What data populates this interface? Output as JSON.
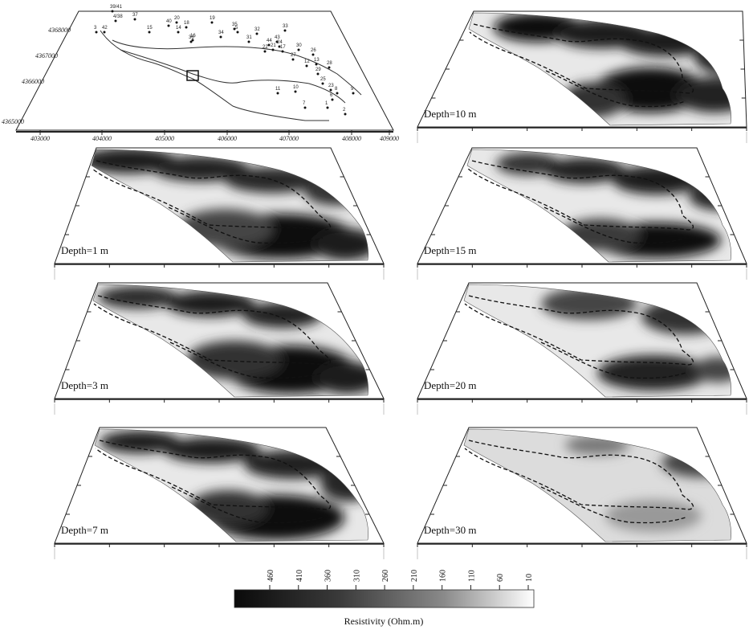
{
  "map": {
    "x_ticks": [
      "403000",
      "404000",
      "405000",
      "406000",
      "407000",
      "408000",
      "409000"
    ],
    "y_ticks": [
      "4368000",
      "4367000",
      "4366000",
      "4365000"
    ],
    "stations": [
      "39/41",
      "4/38",
      "37",
      "42",
      "15",
      "40",
      "18",
      "14",
      "16",
      "19",
      "20",
      "35",
      "34",
      "36",
      "31",
      "32",
      "5",
      "33",
      "43",
      "44",
      "17",
      "22",
      "21",
      "24",
      "3",
      "27",
      "26",
      "30",
      "12",
      "13",
      "28",
      "29",
      "25",
      "23",
      "6",
      "8",
      "9",
      "10",
      "11",
      "7",
      "1",
      "2"
    ]
  },
  "panels": [
    {
      "id": "d10",
      "label": "Depth=10 m"
    },
    {
      "id": "d1",
      "label": "Depth=1 m"
    },
    {
      "id": "d15",
      "label": "Depth=15 m"
    },
    {
      "id": "d3",
      "label": "Depth=3 m"
    },
    {
      "id": "d20",
      "label": "Depth=20 m"
    },
    {
      "id": "d7",
      "label": "Depth=7 m"
    },
    {
      "id": "d30",
      "label": "Depth=30 m"
    }
  ],
  "colorbar": {
    "ticks": [
      "460",
      "410",
      "360",
      "310",
      "260",
      "210",
      "160",
      "110",
      "60",
      "10"
    ],
    "title": "Resistivity (Ohm.m)",
    "color_high": "#0a0a0a",
    "color_low": "#ffffff"
  }
}
